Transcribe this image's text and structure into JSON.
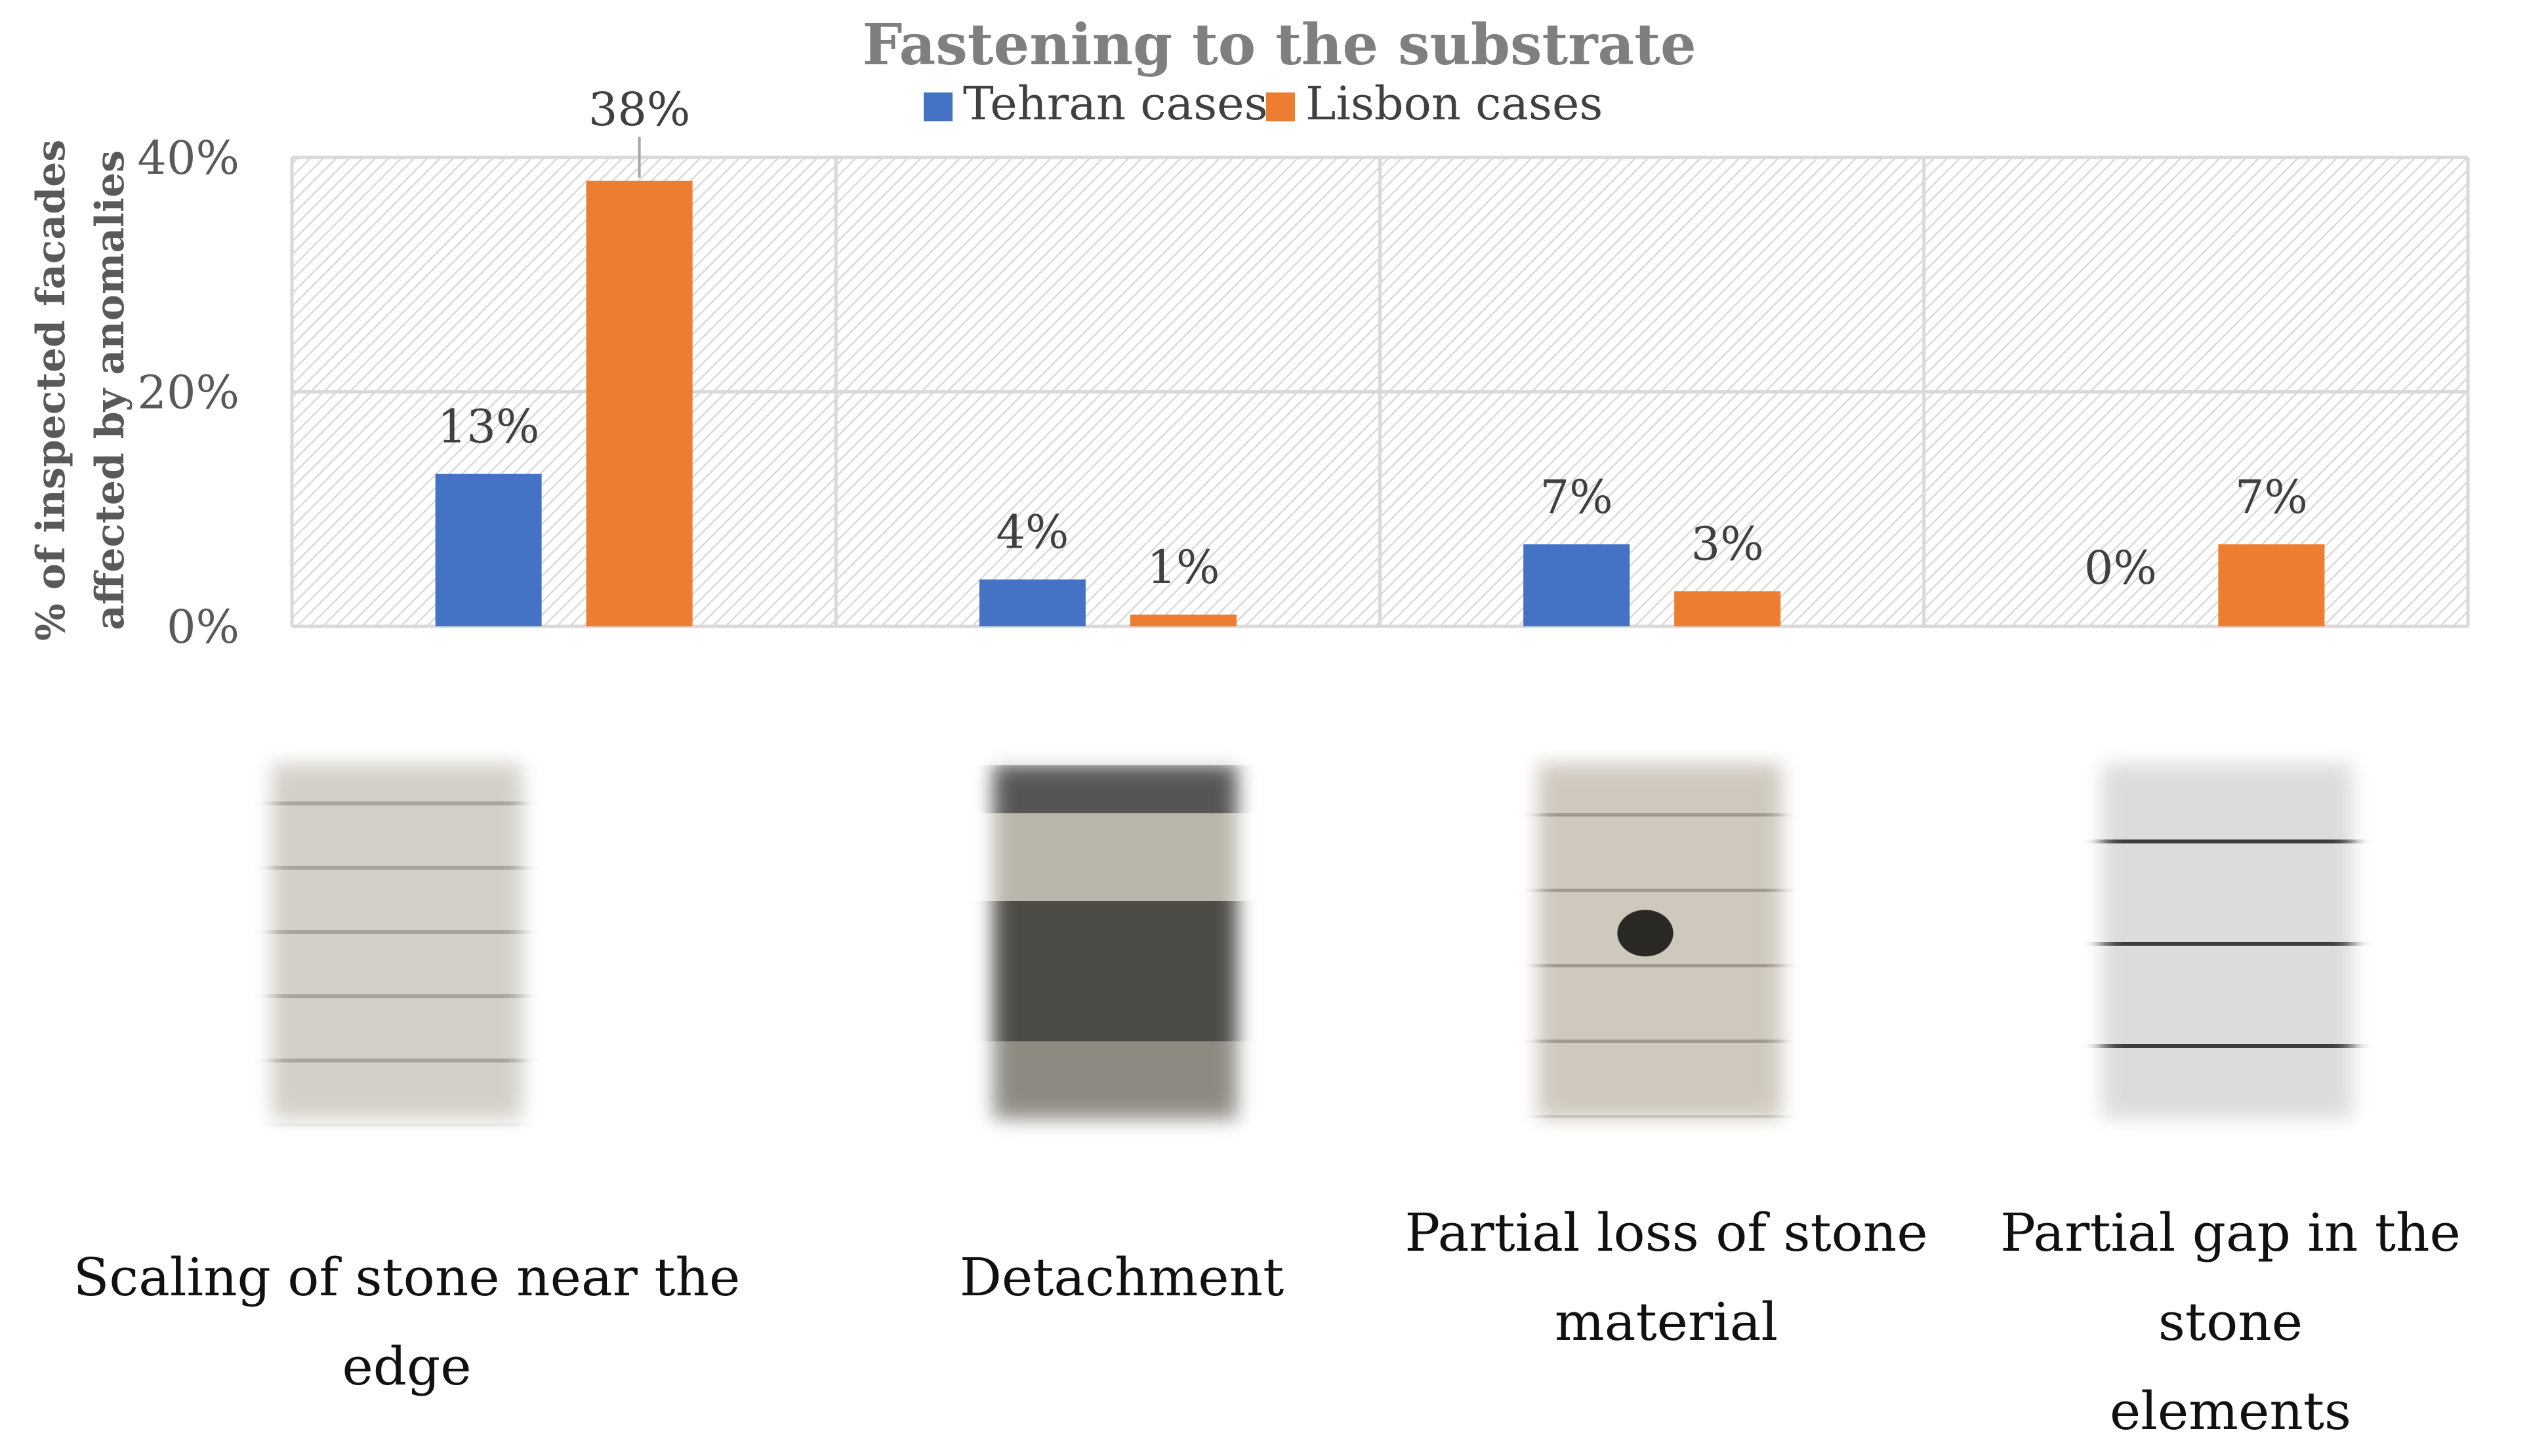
{
  "chart_data": {
    "type": "bar",
    "title": "Fastening to the substrate",
    "ylabel_line1": "% of inspected facades",
    "ylabel_line2": "affected by anomalies",
    "yticks": [
      "0%",
      "20%",
      "40%"
    ],
    "ylim": [
      0,
      40
    ],
    "grid": true,
    "legend_position": "top",
    "categories": [
      "Scaling of stone near the edge",
      "Detachment",
      "Partial loss of stone material",
      "Partial gap in the stone elements"
    ],
    "series": [
      {
        "name": "Tehran cases",
        "color": "#4472C4",
        "values": [
          13,
          4,
          7,
          0
        ],
        "labels": [
          "13%",
          "4%",
          "7%",
          "0%"
        ]
      },
      {
        "name": "Lisbon cases",
        "color": "#ED7D31",
        "values": [
          38,
          1,
          3,
          7
        ],
        "labels": [
          "38%",
          "1%",
          "3%",
          "7%"
        ]
      }
    ]
  },
  "captions": [
    {
      "line1": "Scaling of stone near the edge",
      "line2": ""
    },
    {
      "line1": "Detachment",
      "line2": ""
    },
    {
      "line1": "Partial loss of stone",
      "line2": "material"
    },
    {
      "line1": "Partial gap in the stone",
      "line2": "elements"
    }
  ]
}
